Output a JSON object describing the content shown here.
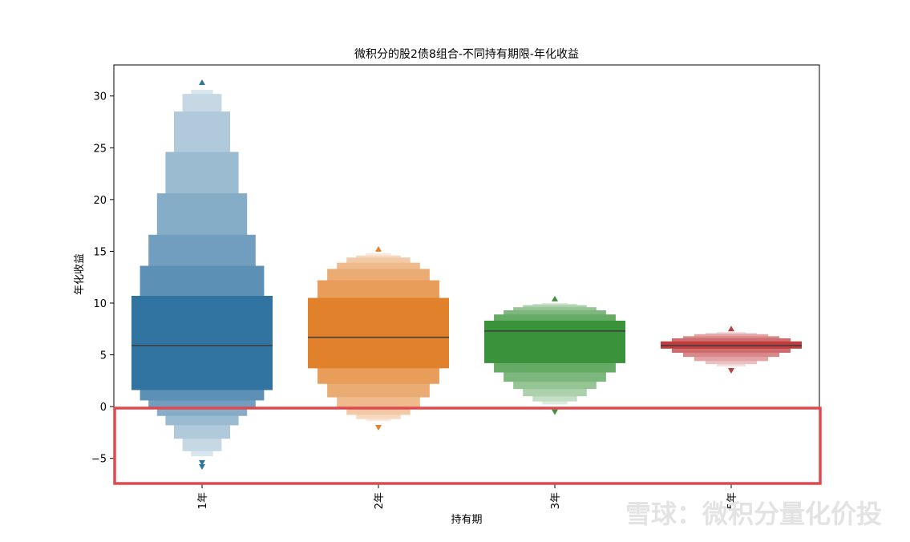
{
  "chart_data": {
    "type": "boxen",
    "title": "微积分的股2债8组合-不同持有期限-年化收益",
    "xlabel": "持有期",
    "ylabel": "年化收益",
    "categories": [
      "1年",
      "2年",
      "3年",
      "5年"
    ],
    "ylim": [
      -7.5,
      33
    ],
    "yticks": [
      -5,
      0,
      5,
      10,
      15,
      20,
      25,
      30
    ],
    "grid": false,
    "series": [
      {
        "category": "1年",
        "color": "#3274a1",
        "median": 5.9,
        "boxes": [
          [
            1.6,
            10.7
          ],
          [
            0.6,
            13.6
          ],
          [
            -0.1,
            16.6
          ],
          [
            -0.9,
            20.6
          ],
          [
            -1.8,
            24.6
          ],
          [
            -3.1,
            28.5
          ],
          [
            -4.3,
            30.2
          ],
          [
            -4.8,
            30.6
          ]
        ],
        "outliers": [
          31.3,
          -5.4,
          -5.8
        ]
      },
      {
        "category": "2年",
        "color": "#e1812c",
        "median": 6.7,
        "boxes": [
          [
            3.7,
            10.5
          ],
          [
            2.2,
            12.2
          ],
          [
            0.9,
            13.3
          ],
          [
            -0.2,
            13.9
          ],
          [
            -0.8,
            14.4
          ],
          [
            -1.2,
            14.6
          ],
          [
            -1.4,
            14.8
          ]
        ],
        "outliers": [
          15.2,
          -2.0
        ]
      },
      {
        "category": "3年",
        "color": "#3a923a",
        "median": 7.3,
        "boxes": [
          [
            4.2,
            8.3
          ],
          [
            3.3,
            8.9
          ],
          [
            2.4,
            9.3
          ],
          [
            1.7,
            9.6
          ],
          [
            1.0,
            9.8
          ],
          [
            0.5,
            9.9
          ],
          [
            0.2,
            10.0
          ]
        ],
        "outliers": [
          10.4,
          -0.5
        ]
      },
      {
        "category": "5年",
        "color": "#c03d3e",
        "median": 5.9,
        "boxes": [
          [
            5.6,
            6.3
          ],
          [
            5.2,
            6.6
          ],
          [
            4.8,
            6.8
          ],
          [
            4.4,
            7.0
          ],
          [
            4.1,
            7.1
          ],
          [
            3.9,
            7.2
          ]
        ],
        "outliers": [
          7.5,
          3.5
        ]
      }
    ]
  },
  "highlight": {
    "color": "#e0484e",
    "ylim": [
      -7.5,
      0
    ]
  },
  "watermark": {
    "text": "雪球：微积分量化价投"
  }
}
